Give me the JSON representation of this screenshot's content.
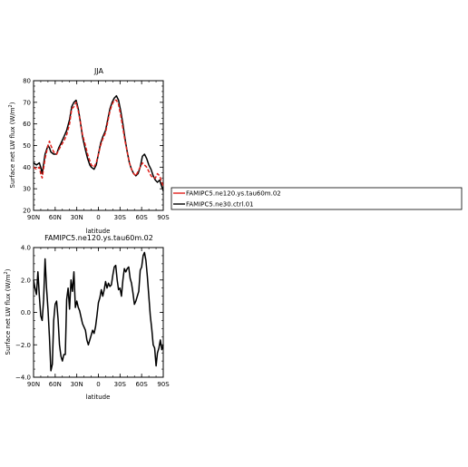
{
  "chart_data": [
    {
      "type": "line",
      "title": "JJA",
      "xlabel": "latitude",
      "ylabel": "Surface net LW flux (W/m²)",
      "ylabel_main": "Surface net LW flux (W/m",
      "ylabel_sup": "2",
      "ylabel_close": ")",
      "xlim": [
        90,
        -90
      ],
      "ylim": [
        20,
        80
      ],
      "xticks": [
        90,
        60,
        30,
        0,
        -30,
        -60,
        -90
      ],
      "xtick_labels": [
        "90N",
        "60N",
        "30N",
        "0",
        "30S",
        "60S",
        "90S"
      ],
      "yticks": [
        20,
        30,
        40,
        50,
        60,
        70,
        80
      ],
      "ytick_labels": [
        "20",
        "30",
        "40",
        "50",
        "60",
        "70",
        "80"
      ],
      "legend_position": "right",
      "series": [
        {
          "name": "FAMIPC5.ne120.ys.tau60m.02",
          "color": "#e0201b",
          "dash": "4,2",
          "x": [
            90,
            86,
            82,
            80,
            78,
            74,
            70,
            68,
            66,
            62,
            58,
            55,
            52,
            48,
            44,
            40,
            37,
            34,
            31,
            28,
            25,
            22,
            18,
            15,
            12,
            10,
            6,
            3,
            0,
            -3,
            -6,
            -10,
            -13,
            -16,
            -19,
            -22,
            -25,
            -28,
            -31,
            -34,
            -37,
            -40,
            -43,
            -46,
            -49,
            -52,
            -55,
            -58,
            -61,
            -64,
            -67,
            -70,
            -73,
            -76,
            -79,
            -82,
            -85,
            -88,
            -90
          ],
          "y": [
            40,
            39,
            40,
            37,
            35,
            44,
            50,
            52,
            50,
            47,
            46,
            48,
            50,
            52,
            55,
            60,
            67,
            68,
            70,
            66,
            61,
            55,
            50,
            46,
            43,
            41,
            40,
            42,
            46,
            50,
            53,
            56,
            61,
            66,
            69,
            71,
            71,
            69,
            64,
            58,
            52,
            47,
            42,
            39,
            37,
            36,
            38,
            40,
            42,
            41,
            40,
            38,
            36,
            35,
            35,
            37,
            36,
            33,
            31
          ]
        },
        {
          "name": "FAMIPC5.ne30.ctrl.01",
          "color": "#000000",
          "dash": "",
          "x": [
            90,
            86,
            82,
            80,
            78,
            74,
            70,
            68,
            66,
            62,
            58,
            55,
            52,
            48,
            44,
            40,
            37,
            34,
            31,
            28,
            25,
            22,
            18,
            15,
            12,
            10,
            6,
            3,
            0,
            -3,
            -6,
            -10,
            -13,
            -16,
            -19,
            -22,
            -25,
            -28,
            -31,
            -34,
            -37,
            -40,
            -43,
            -46,
            -49,
            -52,
            -55,
            -58,
            -61,
            -64,
            -67,
            -70,
            -73,
            -76,
            -79,
            -82,
            -85,
            -88,
            -90
          ],
          "y": [
            42,
            41,
            42,
            40,
            37,
            46,
            50,
            49,
            47,
            46,
            46,
            49,
            51,
            54,
            57,
            62,
            68,
            70,
            71,
            67,
            61,
            54,
            48,
            44,
            41,
            40,
            39,
            41,
            46,
            51,
            54,
            57,
            62,
            67,
            70,
            72,
            73,
            71,
            66,
            60,
            53,
            47,
            42,
            39,
            37,
            36,
            37,
            40,
            45,
            46,
            44,
            41,
            39,
            36,
            34,
            33,
            34,
            31,
            29
          ]
        }
      ]
    },
    {
      "type": "line",
      "title": "FAMIPC5.ne120.ys.tau60m.02",
      "xlabel": "latitude",
      "ylabel": "Surface net LW flux (W/m²)",
      "ylabel_main": "Surface net LW flux (W/m",
      "ylabel_sup": "2",
      "ylabel_close": ")",
      "xlim": [
        90,
        -90
      ],
      "ylim": [
        -4,
        4
      ],
      "xticks": [
        90,
        60,
        30,
        0,
        -30,
        -60,
        -90
      ],
      "xtick_labels": [
        "90N",
        "60N",
        "30N",
        "0",
        "30S",
        "60S",
        "90S"
      ],
      "yticks": [
        -4,
        -2,
        0,
        2,
        4
      ],
      "ytick_labels": [
        "−4.0",
        "−2.0",
        "0.0",
        "2.0",
        "4.0"
      ],
      "series": [
        {
          "color": "#000000",
          "x": [
            90,
            88,
            86,
            84,
            82,
            80,
            78,
            76,
            74,
            72,
            70,
            68,
            66,
            64,
            62,
            60,
            58,
            56,
            54,
            52,
            50,
            48,
            46,
            44,
            42,
            40,
            38,
            36,
            34,
            32,
            30,
            28,
            26,
            24,
            22,
            20,
            18,
            16,
            14,
            12,
            10,
            8,
            6,
            4,
            2,
            0,
            -2,
            -4,
            -6,
            -8,
            -10,
            -12,
            -14,
            -16,
            -18,
            -20,
            -22,
            -24,
            -26,
            -28,
            -30,
            -32,
            -34,
            -36,
            -38,
            -40,
            -42,
            -44,
            -46,
            -48,
            -50,
            -52,
            -54,
            -56,
            -58,
            -60,
            -62,
            -64,
            -66,
            -68,
            -70,
            -72,
            -74,
            -76,
            -78,
            -80,
            -82,
            -84,
            -86,
            -88,
            -90
          ],
          "y": [
            2.0,
            1.5,
            1.1,
            2.5,
            1.0,
            -0.2,
            -0.5,
            0.8,
            3.3,
            1.5,
            0.2,
            -1.5,
            -3.6,
            -3.2,
            -0.5,
            0.5,
            0.7,
            -0.4,
            -2.0,
            -2.7,
            -3.0,
            -2.6,
            -2.6,
            0.8,
            1.5,
            0.2,
            2.0,
            1.3,
            2.5,
            0.3,
            0.7,
            0.3,
            0.1,
            -0.3,
            -0.7,
            -0.9,
            -1.1,
            -1.7,
            -2.0,
            -1.7,
            -1.4,
            -1.1,
            -1.3,
            -0.9,
            -0.2,
            0.6,
            0.9,
            1.4,
            1.0,
            1.4,
            1.9,
            1.5,
            1.8,
            1.6,
            1.7,
            2.3,
            2.8,
            2.9,
            2.0,
            1.4,
            1.5,
            1.0,
            2.0,
            2.7,
            2.5,
            2.7,
            2.8,
            2.1,
            1.8,
            1.2,
            0.5,
            0.7,
            1.0,
            1.3,
            2.6,
            2.8,
            3.5,
            3.7,
            3.2,
            2.2,
            1.0,
            -0.2,
            -1.0,
            -2.0,
            -2.2,
            -3.3,
            -2.5,
            -2.2,
            -1.7,
            -2.3,
            -2.0
          ]
        }
      ]
    }
  ]
}
